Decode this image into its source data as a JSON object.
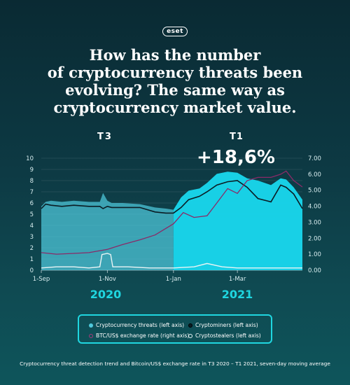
{
  "brand": "eset",
  "headline": [
    "How has the number",
    "of cryptocurrency threats been",
    "evolving? The same way as",
    "cryptocurrency market value."
  ],
  "footer": "Cryptocurrency threat detection trend and Bitcoin/US$ exchange rate in T3 2020 – T1 2021, seven-day moving average",
  "colors": {
    "threats_t3": "#4fc9dc",
    "threats_t1": "#19d8ee",
    "miners_line": "#0b1c24",
    "btc_line": "#8a2a68",
    "stealers_line": "#e9f4f5",
    "accent": "#1fd6e0"
  },
  "chart_data": {
    "type": "area",
    "period_labels": [
      "T3",
      "T1"
    ],
    "change_annotation": "+18,6%",
    "year_labels": [
      "2020",
      "2021"
    ],
    "x_tick_labels": [
      "1-Sep",
      "1-Nov",
      "1-Jan",
      "1-Mar"
    ],
    "x_ticks": [
      "2020-09-01",
      "2020-11-01",
      "2021-01-01",
      "2021-03-01"
    ],
    "x_range": [
      "2020-09-01",
      "2021-04-30"
    ],
    "y_left": {
      "range": [
        0,
        10
      ],
      "ticks": [
        "0",
        "1",
        "2",
        "3",
        "4",
        "5",
        "6",
        "7",
        "8",
        "9",
        "10"
      ]
    },
    "y_right": {
      "range": [
        0,
        7
      ],
      "ticks": [
        "0.00",
        "1.00",
        "2.00",
        "3.00",
        "4.00",
        "5.00",
        "6.00",
        "7.00"
      ]
    },
    "legend": [
      {
        "label": "Cryptocurrency threats (left axis)",
        "marker": "filled-dot"
      },
      {
        "label": "Cryptominers (left axis)",
        "marker": "ring-dark"
      },
      {
        "label": "BTC/US$ exchange rate (right axis)",
        "marker": "ring-purple"
      },
      {
        "label": "Cryptostealers (left axis)",
        "marker": "ring-light"
      }
    ],
    "series": [
      {
        "name": "Cryptocurrency threats (left axis)",
        "axis": "left",
        "x": [
          "2020-09-01",
          "2020-09-05",
          "2020-09-10",
          "2020-09-20",
          "2020-10-01",
          "2020-10-15",
          "2020-10-25",
          "2020-10-28",
          "2020-11-01",
          "2020-11-05",
          "2020-11-15",
          "2020-12-01",
          "2020-12-15",
          "2020-12-25",
          "2021-01-01",
          "2021-01-08",
          "2021-01-15",
          "2021-01-25",
          "2021-02-01",
          "2021-02-10",
          "2021-02-20",
          "2021-03-01",
          "2021-03-10",
          "2021-03-20",
          "2021-04-01",
          "2021-04-10",
          "2021-04-15",
          "2021-04-22",
          "2021-04-30"
        ],
        "y": [
          5.7,
          6.1,
          6.2,
          6.1,
          6.2,
          6.1,
          6.1,
          6.9,
          6.2,
          6.0,
          6.0,
          5.9,
          5.6,
          5.5,
          5.4,
          6.5,
          7.1,
          7.3,
          7.8,
          8.6,
          8.8,
          8.7,
          8.2,
          8.0,
          7.6,
          8.2,
          8.1,
          7.4,
          6.3
        ]
      },
      {
        "name": "Cryptominers (left axis)",
        "axis": "left",
        "x": [
          "2020-09-01",
          "2020-09-05",
          "2020-09-10",
          "2020-09-20",
          "2020-10-01",
          "2020-10-15",
          "2020-10-25",
          "2020-10-28",
          "2020-11-01",
          "2020-11-05",
          "2020-11-15",
          "2020-12-01",
          "2020-12-15",
          "2020-12-25",
          "2021-01-01",
          "2021-01-08",
          "2021-01-15",
          "2021-01-25",
          "2021-02-01",
          "2021-02-10",
          "2021-02-20",
          "2021-03-01",
          "2021-03-10",
          "2021-03-20",
          "2021-04-01",
          "2021-04-10",
          "2021-04-15",
          "2021-04-22",
          "2021-04-30"
        ],
        "y": [
          5.5,
          5.9,
          5.8,
          5.7,
          5.8,
          5.7,
          5.7,
          5.5,
          5.7,
          5.6,
          5.6,
          5.6,
          5.2,
          5.1,
          5.1,
          5.6,
          6.3,
          6.6,
          7.0,
          7.6,
          7.9,
          8.0,
          7.4,
          6.4,
          6.1,
          7.6,
          7.4,
          6.8,
          5.5
        ]
      },
      {
        "name": "BTC/US$ exchange rate (right axis)",
        "axis": "right",
        "x": [
          "2020-09-01",
          "2020-09-15",
          "2020-10-01",
          "2020-10-15",
          "2020-11-01",
          "2020-11-15",
          "2020-12-01",
          "2020-12-15",
          "2021-01-01",
          "2021-01-10",
          "2021-01-20",
          "2021-02-01",
          "2021-02-10",
          "2021-02-20",
          "2021-03-01",
          "2021-03-10",
          "2021-03-20",
          "2021-04-01",
          "2021-04-10",
          "2021-04-15",
          "2021-04-22",
          "2021-04-30"
        ],
        "y": [
          1.1,
          1.0,
          1.05,
          1.1,
          1.3,
          1.6,
          1.9,
          2.2,
          2.9,
          3.6,
          3.3,
          3.4,
          4.2,
          5.1,
          4.8,
          5.6,
          5.8,
          5.8,
          6.0,
          6.2,
          5.6,
          5.2
        ]
      },
      {
        "name": "Cryptostealers (left axis)",
        "axis": "left",
        "x": [
          "2020-09-01",
          "2020-09-15",
          "2020-10-01",
          "2020-10-15",
          "2020-10-25",
          "2020-10-27",
          "2020-11-01",
          "2020-11-04",
          "2020-11-06",
          "2020-11-20",
          "2020-12-10",
          "2021-01-01",
          "2021-01-20",
          "2021-02-01",
          "2021-02-15",
          "2021-03-01",
          "2021-03-20",
          "2021-04-10",
          "2021-04-30"
        ],
        "y": [
          0.2,
          0.3,
          0.3,
          0.2,
          0.3,
          1.4,
          1.5,
          1.4,
          0.3,
          0.3,
          0.2,
          0.2,
          0.3,
          0.6,
          0.3,
          0.2,
          0.2,
          0.2,
          0.2
        ]
      }
    ]
  }
}
